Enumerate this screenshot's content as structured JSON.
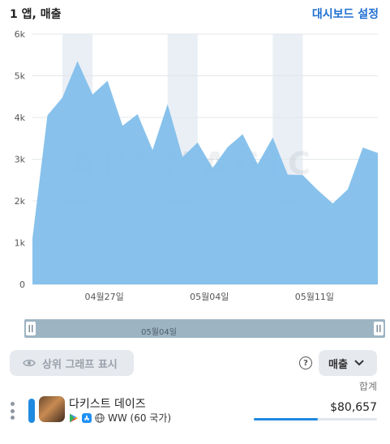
{
  "header": {
    "title": "1 앱, 매출",
    "dashboard_link": "대시보드 설정"
  },
  "watermark": "APPMAGIC",
  "chart_data": {
    "type": "area",
    "title": "",
    "xlabel": "",
    "ylabel": "",
    "ylim": [
      0,
      6000
    ],
    "yticks": [
      0,
      1000,
      2000,
      3000,
      4000,
      5000,
      6000
    ],
    "ytick_labels": [
      "0",
      "1k",
      "2k",
      "3k",
      "4k",
      "5k",
      "6k"
    ],
    "xtick_labels": [
      {
        "label": "04월27일",
        "day_index": 5
      },
      {
        "label": "05월04일",
        "day_index": 12
      },
      {
        "label": "05월11일",
        "day_index": 19
      }
    ],
    "weekend_bands": [
      [
        2,
        4
      ],
      [
        9,
        11
      ],
      [
        16,
        18
      ]
    ],
    "grid": true,
    "fill_color": "#7fbdeb",
    "series": [
      {
        "values": [
          1100,
          4050,
          4480,
          5350,
          4550,
          4880,
          3800,
          4080,
          3220,
          4320,
          3050,
          3400,
          2790,
          3290,
          3600,
          2880,
          3520,
          2630,
          2620,
          2260,
          1940,
          2280,
          3280,
          3150
        ]
      }
    ]
  },
  "range_slider": {
    "label": "05월04일"
  },
  "controls": {
    "top_graphs_label": "상위 그래프 표시",
    "help_symbol": "?",
    "metric_label": "매출",
    "total_label": "합계"
  },
  "apps": [
    {
      "name": "다키스트 데이즈",
      "region": "WW (60 국가)",
      "revenue": "$80,657",
      "share": 0.52,
      "color": "#1f8ae0"
    }
  ]
}
